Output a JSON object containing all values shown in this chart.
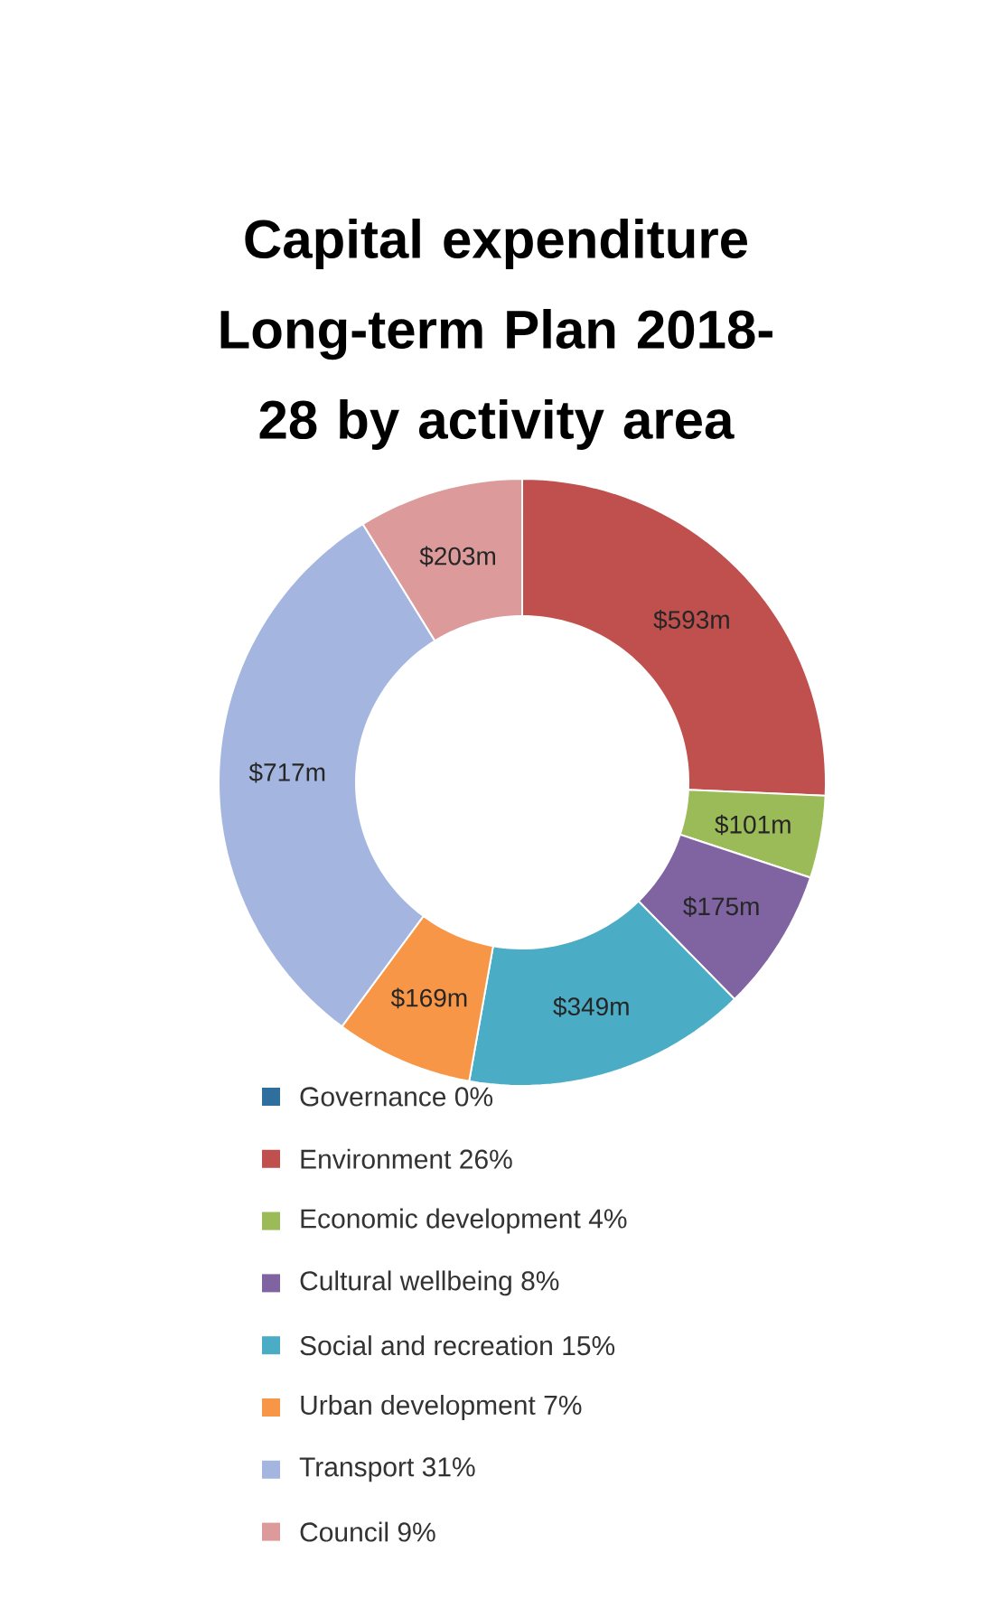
{
  "chart_data": {
    "type": "donut",
    "title": "Capital expenditure Long-term Plan 2018-28 by activity area",
    "categories": [
      "Governance  0%",
      "Environment  26%",
      "Economic development  4%",
      "Cultural wellbeing  8%",
      "Social and recreation  15%",
      "Urban development  7%",
      "Transport  31%",
      "Council  9%"
    ],
    "values": [
      0,
      593,
      101,
      175,
      349,
      169,
      717,
      203
    ],
    "value_labels": [
      null,
      "$593m",
      "$101m",
      "$175m",
      "$349m",
      "$169m",
      "$717m",
      "$203m"
    ],
    "colors": [
      "#2e6f9e",
      "#c0504d",
      "#9bbb59",
      "#8064a2",
      "#4bacc6",
      "#f79646",
      "#a4b6e0",
      "#dc9a9b"
    ],
    "legend": "bottom"
  }
}
